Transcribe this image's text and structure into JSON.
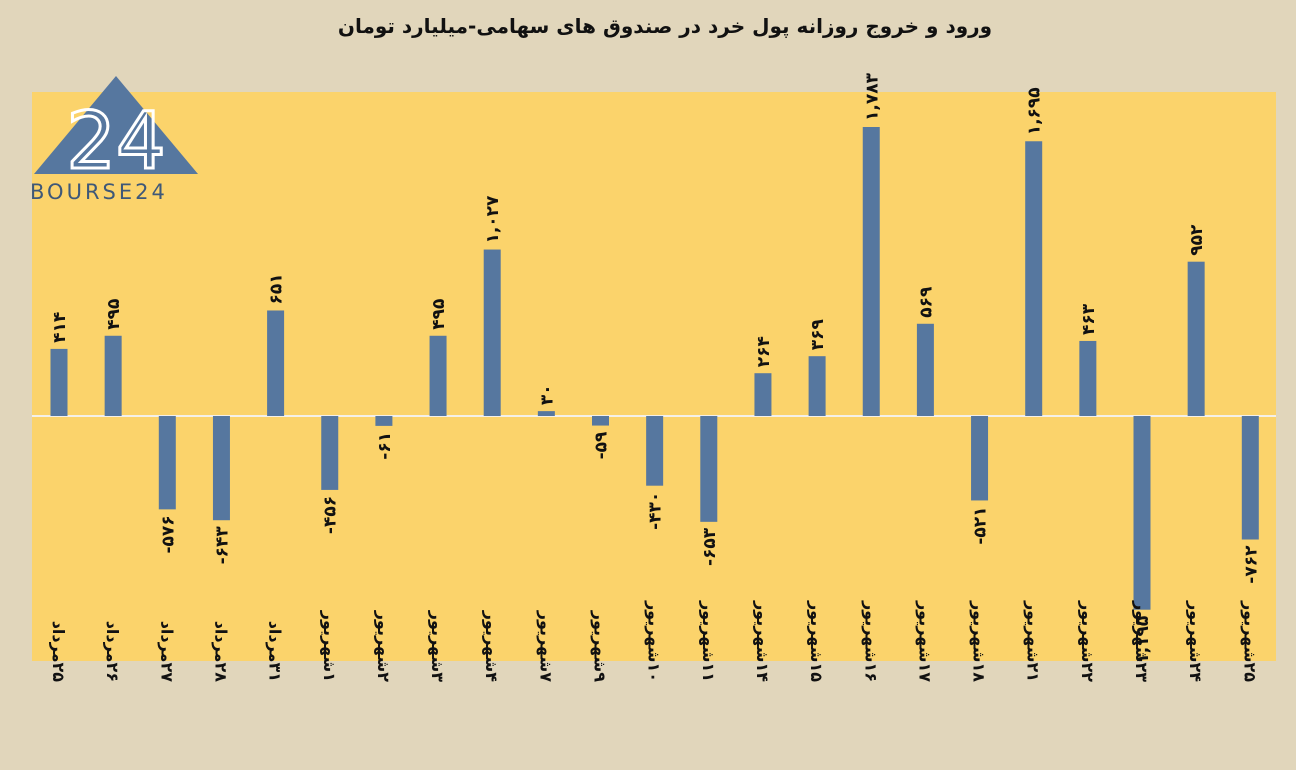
{
  "chart_data": {
    "type": "bar",
    "title": "ورود و خروج روزانه پول خرد در صندوق های سهامی-میلیارد تومان",
    "categories": [
      "۲۵مرداد",
      "۲۶مرداد",
      "۲۷مرداد",
      "۲۸مرداد",
      "۳۱مرداد",
      "۱شهریور",
      "۲شهریور",
      "۳شهریور",
      "۴شهریور",
      "۷شهریور",
      "۹شهریور",
      "۱۰شهریور",
      "۱۱شهریور",
      "۱۴شهریور",
      "۱۵شهریور",
      "۱۶شهریور",
      "۱۷شهریور",
      "۱۸شهریور",
      "۲۱شهریور",
      "۲۲شهریور",
      "۲۳شهریور",
      "۲۴شهریور",
      "۲۵شهریور"
    ],
    "values": [
      414,
      495,
      -576,
      -643,
      651,
      -456,
      -61,
      495,
      1027,
      30,
      -59,
      -430,
      -653,
      264,
      369,
      1783,
      569,
      -521,
      1695,
      463,
      -1195,
      952,
      -762
    ],
    "value_labels": [
      "۴۱۴",
      "۴۹۵",
      "-۵۷۶",
      "-۶۴۳",
      "۶۵۱",
      "-۴۵۶",
      "-۶۱",
      "۴۹۵",
      "۱,۰۲۷",
      "۳۰",
      "-۵۹",
      "-۴۳۰",
      "-۶۵۳",
      "۲۶۴",
      "۳۶۹",
      "۱,۷۸۳",
      "۵۶۹",
      "-۵۲۱",
      "۱,۶۹۵",
      "۴۶۳",
      "-۱,۱۹۵",
      "۹۵۲",
      "-۷۶۲"
    ],
    "ylim": [
      -1500,
      2000
    ],
    "grid": false,
    "colors": {
      "bar": "#56779f",
      "plot_bg": "#fbd36b",
      "page_bg": "#e1d6bb",
      "zero_line": "#f4f0e8"
    }
  },
  "logo": {
    "text": "BOURSE24",
    "mark": "24"
  }
}
